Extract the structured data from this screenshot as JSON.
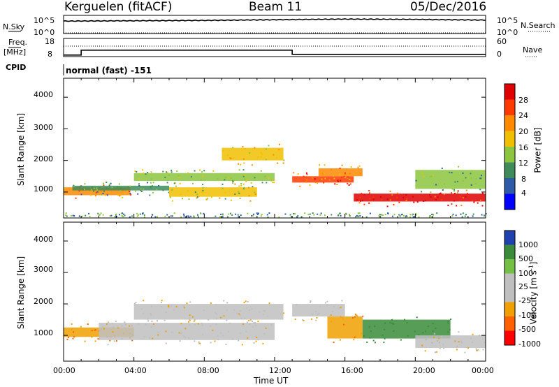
{
  "header": {
    "station": "Kerguelen (fitACF)",
    "beam": "Beam 11",
    "date": "05/Dec/2016"
  },
  "top_panel": {
    "nsky_label": "N.Sky",
    "nsearch_label": "N.Search",
    "left_ticks": [
      "10^5",
      "10^0"
    ],
    "right_ticks": [
      "10^5",
      "10^0"
    ],
    "freq_label": "Freq.",
    "freq_unit": "[MHz]",
    "freq_ticks": [
      "18",
      "8"
    ],
    "nave_label": "Nave",
    "nave_ticks": [
      "60",
      "0"
    ],
    "cpid_label": "CPID",
    "cpid_value": "normal (fast) -151"
  },
  "power_panel": {
    "ylabel": "Slant Range [km]",
    "yticks": [
      "4000",
      "3000",
      "2000",
      "1000"
    ],
    "colorbar_label": "Power [dB]",
    "colorbar_ticks": [
      "28",
      "24",
      "20",
      "16",
      "12",
      "8",
      "4"
    ]
  },
  "velocity_panel": {
    "ylabel": "Slant Range [km]",
    "yticks": [
      "4000",
      "3000",
      "2000",
      "1000"
    ],
    "colorbar_label": "Velocity [m s",
    "colorbar_sup": "-1",
    "colorbar_label_end": "]",
    "colorbar_ticks": [
      "1000",
      "500",
      "100",
      "25",
      "-25",
      "-100",
      "-500",
      "-1000"
    ]
  },
  "xaxis": {
    "title": "Time UT",
    "ticks": [
      "00:00",
      "04:00",
      "08:00",
      "12:00",
      "16:00",
      "20:00",
      "00:00"
    ]
  },
  "colors": {
    "power_scale": [
      "#e00000",
      "#ff3a00",
      "#ff8a00",
      "#f0c000",
      "#8cc63f",
      "#3f8c5a",
      "#2f5aa8",
      "#0000ff"
    ],
    "velocity_scale": [
      "#2040b0",
      "#3a8c3a",
      "#74c044",
      "#bfbfbf",
      "#bfbfbf",
      "#f0a000",
      "#ff6000",
      "#ff0000"
    ]
  },
  "chart_data": [
    {
      "type": "line",
      "title": "",
      "x": [
        "00:00",
        "04:00",
        "08:00",
        "12:00",
        "16:00",
        "20:00",
        "00:00"
      ],
      "series": [
        {
          "name": "N.Sky",
          "values": [
            0.7,
            0.72,
            0.74,
            0.78,
            0.82,
            0.8,
            0.76
          ]
        },
        {
          "name": "N.Search",
          "values": [
            0.02,
            0.02,
            0.02,
            0.02,
            0.02,
            0.02,
            0.02
          ]
        }
      ]
    },
    {
      "type": "line",
      "x": [
        "00:00",
        "01:00",
        "13:00",
        "00:00"
      ],
      "series": [
        {
          "name": "Freq.",
          "values": [
            8.5,
            11.4,
            8.9,
            8.9
          ]
        },
        {
          "name": "Nave",
          "values": [
            40,
            40,
            40,
            40
          ]
        }
      ],
      "ylim": [
        8,
        18
      ]
    },
    {
      "type": "heatmap",
      "xlabel": "Time UT",
      "ylabel": "Slant Range [km]",
      "ylim": [
        180,
        4600
      ],
      "zlabel": "Power [dB]",
      "zlim": [
        0,
        30
      ],
      "bands": [
        {
          "t": [
            0,
            3.8
          ],
          "range": [
            900,
            1150
          ],
          "value": 22
        },
        {
          "t": [
            0.5,
            6
          ],
          "range": [
            1050,
            1200
          ],
          "value": 10
        },
        {
          "t": [
            4,
            12
          ],
          "range": [
            1350,
            1600
          ],
          "value": 14
        },
        {
          "t": [
            6,
            11
          ],
          "range": [
            850,
            1150
          ],
          "value": 16
        },
        {
          "t": [
            9,
            12.5
          ],
          "range": [
            2000,
            2400
          ],
          "value": 18
        },
        {
          "t": [
            13,
            16.5
          ],
          "range": [
            1300,
            1500
          ],
          "value": 24
        },
        {
          "t": [
            14.5,
            17
          ],
          "range": [
            1500,
            1750
          ],
          "value": 22
        },
        {
          "t": [
            16.5,
            24
          ],
          "range": [
            700,
            950
          ],
          "value": 28
        },
        {
          "t": [
            20,
            24
          ],
          "range": [
            1100,
            1700
          ],
          "value": 12
        }
      ]
    },
    {
      "type": "heatmap",
      "xlabel": "Time UT",
      "ylabel": "Slant Range [km]",
      "ylim": [
        180,
        4600
      ],
      "zlabel": "Velocity [m s^-1]",
      "zlim": [
        -1000,
        1000
      ],
      "bands": [
        {
          "t": [
            0,
            4
          ],
          "range": [
            950,
            1250
          ],
          "value": -100
        },
        {
          "t": [
            2,
            12
          ],
          "range": [
            850,
            1400
          ],
          "value": 0
        },
        {
          "t": [
            4,
            12.5
          ],
          "range": [
            1500,
            2000
          ],
          "value": 0
        },
        {
          "t": [
            13,
            16
          ],
          "range": [
            1600,
            2000
          ],
          "value": 0
        },
        {
          "t": [
            15,
            17
          ],
          "range": [
            900,
            1600
          ],
          "value": -100
        },
        {
          "t": [
            17,
            22
          ],
          "range": [
            900,
            1500
          ],
          "value": 500
        },
        {
          "t": [
            20,
            24
          ],
          "range": [
            600,
            1000
          ],
          "value": 0
        }
      ]
    }
  ]
}
